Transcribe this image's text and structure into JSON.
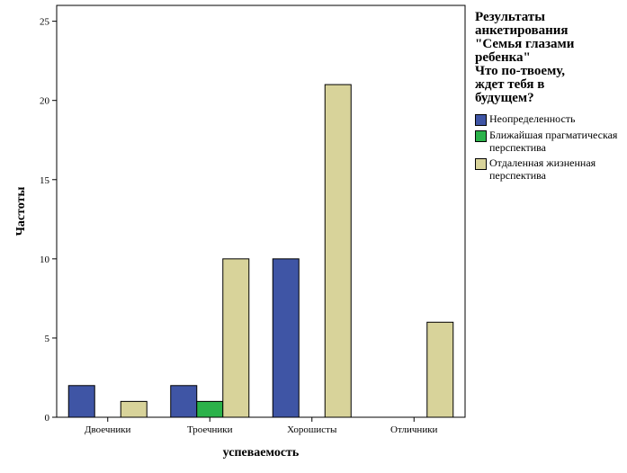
{
  "chart_data": {
    "type": "bar",
    "title": "",
    "xlabel": "успеваемость",
    "ylabel": "Частоты",
    "ylim": [
      0,
      26
    ],
    "yticks": [
      0,
      5,
      10,
      15,
      20,
      25
    ],
    "grid": false,
    "legend_position": "right",
    "legend_title": "Результаты\nанкетирования\n\"Семья глазами\nребенка\"\nЧто по-твоему,\nждет тебя в\nбудущем?",
    "categories": [
      "Двоечники",
      "Троечники",
      "Хорошисты",
      "Отличники"
    ],
    "series": [
      {
        "name": "Неопределенность",
        "color": "#3f55a5",
        "values": [
          2,
          2,
          10,
          0
        ]
      },
      {
        "name": "Ближайшая прагматическая перспектива",
        "color": "#2bb24a",
        "values": [
          0,
          1,
          0,
          0
        ]
      },
      {
        "name": "Отдаленная жизненная перспектива",
        "color": "#d8d39a",
        "values": [
          1,
          10,
          21,
          6
        ]
      }
    ]
  }
}
